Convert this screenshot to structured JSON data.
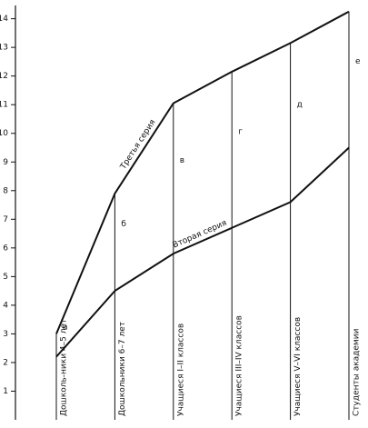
{
  "chart_data": {
    "type": "line",
    "categories": [
      "Дошколь-ники 4–5 лет",
      "Дошкольники 6–7 лет",
      "Учащиеся I–II классов",
      "Учащиеся III–IV классов",
      "Учащиеся V–VI классов",
      "Студенты академии"
    ],
    "series": [
      {
        "name": "Третья серия",
        "color": "#111111",
        "values": [
          3.0,
          7.9,
          11.05,
          12.15,
          13.15,
          14.25
        ]
      },
      {
        "name": "Вторая серия",
        "color": "#111111",
        "values": [
          2.2,
          4.5,
          5.8,
          6.7,
          7.6,
          9.5
        ]
      }
    ],
    "letters": [
      "а",
      "б",
      "в",
      "г",
      "д",
      "е"
    ],
    "ylim": [
      0,
      14.4
    ],
    "yticks": [
      1,
      2,
      3,
      4,
      5,
      6,
      7,
      8,
      9,
      10,
      11,
      12,
      13,
      14
    ]
  }
}
